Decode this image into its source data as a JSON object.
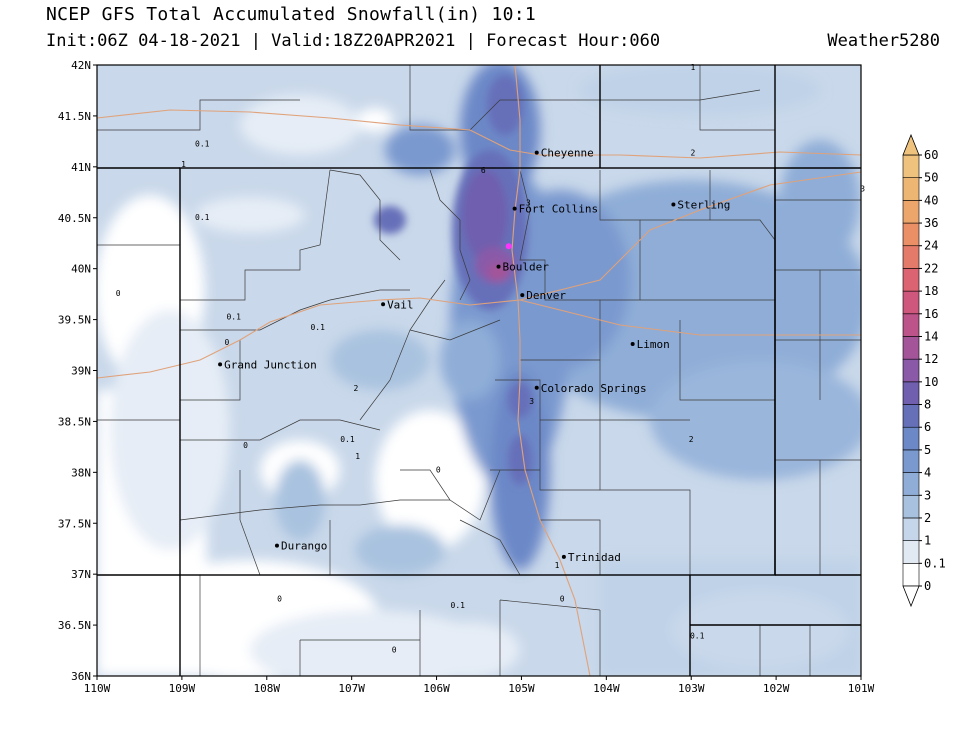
{
  "header": {
    "title": "NCEP GFS Total Accumulated Snowfall(in) 10:1",
    "subtitle": "Init:06Z 04-18-2021 | Valid:18Z20APR2021 | Forecast Hour:060",
    "brand": "Weather5280"
  },
  "axes": {
    "lat_labels": [
      "42N",
      "41.5N",
      "41N",
      "40.5N",
      "40N",
      "39.5N",
      "39N",
      "38.5N",
      "38N",
      "37.5N",
      "37N",
      "36.5N",
      "36N"
    ],
    "lon_labels": [
      "110W",
      "109W",
      "108W",
      "107W",
      "106W",
      "105W",
      "104W",
      "103W",
      "102W",
      "101W"
    ]
  },
  "map": {
    "cities": [
      {
        "name": "Cheyenne",
        "lon": -104.82,
        "lat": 41.14
      },
      {
        "name": "Fort Collins",
        "lon": -105.08,
        "lat": 40.59
      },
      {
        "name": "Sterling",
        "lon": -103.21,
        "lat": 40.63
      },
      {
        "name": "Boulder",
        "lon": -105.27,
        "lat": 40.02
      },
      {
        "name": "Denver",
        "lon": -104.99,
        "lat": 39.74
      },
      {
        "name": "Vail",
        "lon": -106.63,
        "lat": 39.65
      },
      {
        "name": "Limon",
        "lon": -103.69,
        "lat": 39.26
      },
      {
        "name": "Grand Junction",
        "lon": -108.55,
        "lat": 39.06
      },
      {
        "name": "Colorado Springs",
        "lon": -104.82,
        "lat": 38.83
      },
      {
        "name": "Durango",
        "lon": -107.88,
        "lat": 37.28
      },
      {
        "name": "Trinidad",
        "lon": -104.5,
        "lat": 37.17
      }
    ],
    "contour_labels": [
      {
        "text": "1",
        "lon": -102.98,
        "lat": 41.95
      },
      {
        "text": "0.1",
        "lon": -108.76,
        "lat": 41.2
      },
      {
        "text": "2",
        "lon": -102.98,
        "lat": 41.11
      },
      {
        "text": "1",
        "lon": -108.98,
        "lat": 41.0
      },
      {
        "text": "6",
        "lon": -105.45,
        "lat": 40.94
      },
      {
        "text": "3",
        "lon": -100.98,
        "lat": 40.76
      },
      {
        "text": "3",
        "lon": -104.92,
        "lat": 40.62
      },
      {
        "text": "0.1",
        "lon": -108.76,
        "lat": 40.48
      },
      {
        "text": "0",
        "lon": -109.75,
        "lat": 39.73
      },
      {
        "text": "0.1",
        "lon": -108.39,
        "lat": 39.5
      },
      {
        "text": "0.1",
        "lon": -107.4,
        "lat": 39.4
      },
      {
        "text": "0",
        "lon": -108.47,
        "lat": 39.25
      },
      {
        "text": "2",
        "lon": -106.95,
        "lat": 38.8
      },
      {
        "text": "3",
        "lon": -104.88,
        "lat": 38.67
      },
      {
        "text": "0.1",
        "lon": -107.05,
        "lat": 38.3
      },
      {
        "text": "2",
        "lon": -103.0,
        "lat": 38.3
      },
      {
        "text": "0",
        "lon": -108.25,
        "lat": 38.24
      },
      {
        "text": "1",
        "lon": -106.93,
        "lat": 38.13
      },
      {
        "text": "0",
        "lon": -105.98,
        "lat": 38.0
      },
      {
        "text": "1",
        "lon": -104.58,
        "lat": 37.06
      },
      {
        "text": "0",
        "lon": -104.52,
        "lat": 36.73
      },
      {
        "text": "0",
        "lon": -107.85,
        "lat": 36.73
      },
      {
        "text": "0.1",
        "lon": -105.75,
        "lat": 36.67
      },
      {
        "text": "0.1",
        "lon": -102.93,
        "lat": 36.37
      },
      {
        "text": "0",
        "lon": -106.5,
        "lat": 36.23
      }
    ],
    "highlight_point": {
      "lon": -105.15,
      "lat": 40.22
    }
  },
  "colorbar": {
    "labels": [
      "0",
      "0.1",
      "1",
      "2",
      "3",
      "4",
      "5",
      "6",
      "8",
      "10",
      "12",
      "14",
      "16",
      "18",
      "22",
      "24",
      "36",
      "40",
      "50",
      "60"
    ],
    "colors": [
      "#ffffff",
      "#e1e9f3",
      "#c5d6ea",
      "#a8c1df",
      "#8fadd7",
      "#7a99cf",
      "#6c88c7",
      "#6670b9",
      "#6f5fae",
      "#8a5aa8",
      "#a45599",
      "#bc548a",
      "#cf577d",
      "#dc6472",
      "#e47a6a",
      "#ea8f66",
      "#eca56a",
      "#eeb673",
      "#efc37e"
    ]
  }
}
